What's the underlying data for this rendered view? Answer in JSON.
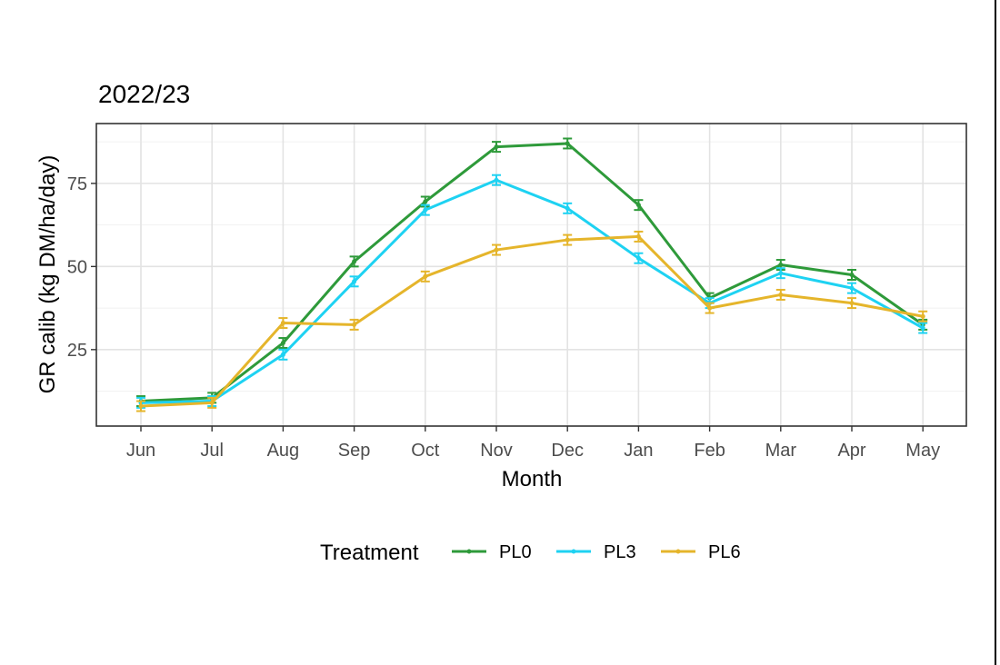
{
  "chart_data": {
    "type": "line",
    "title": "2022/23",
    "xlabel": "Month",
    "ylabel": "GR calib (kg DM/ha/day)",
    "categories": [
      "Jun",
      "Jul",
      "Aug",
      "Sep",
      "Oct",
      "Nov",
      "Dec",
      "Jan",
      "Feb",
      "Mar",
      "Apr",
      "May"
    ],
    "yticks": [
      25,
      50,
      75
    ],
    "ylim": [
      2,
      93
    ],
    "grid": true,
    "legend": {
      "title": "Treatment",
      "position": "bottom"
    },
    "series": [
      {
        "name": "PL0",
        "color": "#2e9a3a",
        "values": [
          9.5,
          10.5,
          27,
          51.5,
          69.5,
          86,
          87,
          68.5,
          40.5,
          50.5,
          47.5,
          32.5
        ],
        "errors": [
          1.5,
          1.5,
          1.5,
          1.5,
          1.5,
          1.5,
          1.5,
          1.5,
          1.5,
          1.5,
          1.5,
          1.5
        ]
      },
      {
        "name": "PL3",
        "color": "#1ed2f2",
        "values": [
          9,
          9.5,
          23.5,
          45.5,
          67,
          76,
          67.5,
          52.5,
          39,
          48,
          43.5,
          31.5
        ],
        "errors": [
          1.5,
          1.5,
          1.5,
          1.5,
          1.5,
          1.5,
          1.5,
          1.5,
          1.5,
          1.5,
          1.5,
          1.5
        ]
      },
      {
        "name": "PL6",
        "color": "#e5b52b",
        "values": [
          8,
          9,
          33,
          32.5,
          47,
          55,
          58,
          59,
          37.5,
          41.5,
          39,
          35
        ],
        "errors": [
          1.5,
          1.5,
          1.5,
          1.5,
          1.5,
          1.5,
          1.5,
          1.5,
          1.5,
          1.5,
          1.5,
          1.5
        ]
      }
    ]
  }
}
